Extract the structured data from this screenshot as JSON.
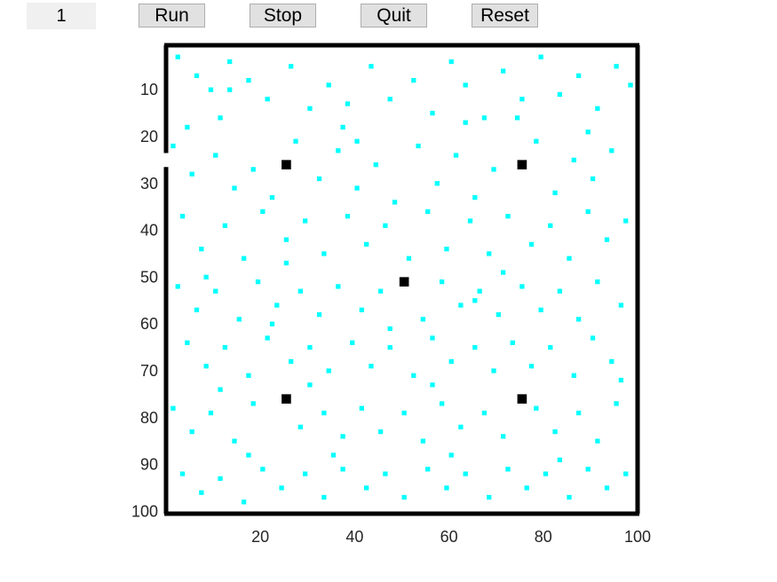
{
  "toolbar": {
    "counter": "1",
    "run_label": "Run",
    "stop_label": "Stop",
    "quit_label": "Quit",
    "reset_label": "Reset"
  },
  "colors": {
    "particle": "#00ffff",
    "source": "#000000",
    "frame": "#000000",
    "background": "#ffffff"
  },
  "chart_data": {
    "type": "heatmap",
    "title": "",
    "xlabel": "",
    "ylabel": "",
    "xlim": [
      0,
      100
    ],
    "ylim": [
      100,
      0
    ],
    "y_inverted": true,
    "grid": false,
    "x_ticks": [
      "20",
      "40",
      "60",
      "80",
      "100"
    ],
    "y_ticks": [
      "10",
      "20",
      "30",
      "40",
      "50",
      "60",
      "70",
      "80",
      "90",
      "100"
    ],
    "frame_opening_rows": [
      24,
      26
    ],
    "sources": [
      [
        25,
        25
      ],
      [
        75,
        25
      ],
      [
        50,
        50
      ],
      [
        25,
        75
      ],
      [
        75,
        75
      ]
    ],
    "particles": [
      [
        3,
        3
      ],
      [
        7,
        7
      ],
      [
        10,
        10
      ],
      [
        14,
        4
      ],
      [
        18,
        8
      ],
      [
        12,
        16
      ],
      [
        5,
        18
      ],
      [
        22,
        12
      ],
      [
        27,
        5
      ],
      [
        31,
        14
      ],
      [
        35,
        9
      ],
      [
        38,
        18
      ],
      [
        44,
        5
      ],
      [
        48,
        12
      ],
      [
        53,
        8
      ],
      [
        57,
        15
      ],
      [
        61,
        4
      ],
      [
        64,
        9
      ],
      [
        68,
        16
      ],
      [
        72,
        6
      ],
      [
        76,
        12
      ],
      [
        80,
        3
      ],
      [
        84,
        11
      ],
      [
        88,
        7
      ],
      [
        92,
        14
      ],
      [
        96,
        5
      ],
      [
        99,
        9
      ],
      [
        2,
        22
      ],
      [
        6,
        28
      ],
      [
        11,
        24
      ],
      [
        15,
        31
      ],
      [
        19,
        27
      ],
      [
        23,
        33
      ],
      [
        28,
        21
      ],
      [
        33,
        29
      ],
      [
        37,
        23
      ],
      [
        41,
        31
      ],
      [
        45,
        26
      ],
      [
        49,
        34
      ],
      [
        54,
        22
      ],
      [
        58,
        30
      ],
      [
        62,
        24
      ],
      [
        66,
        33
      ],
      [
        70,
        27
      ],
      [
        79,
        21
      ],
      [
        83,
        32
      ],
      [
        87,
        25
      ],
      [
        91,
        29
      ],
      [
        95,
        23
      ],
      [
        4,
        37
      ],
      [
        8,
        44
      ],
      [
        13,
        39
      ],
      [
        17,
        46
      ],
      [
        21,
        36
      ],
      [
        26,
        42
      ],
      [
        30,
        38
      ],
      [
        34,
        45
      ],
      [
        39,
        37
      ],
      [
        43,
        43
      ],
      [
        47,
        39
      ],
      [
        52,
        46
      ],
      [
        56,
        36
      ],
      [
        60,
        44
      ],
      [
        65,
        38
      ],
      [
        69,
        45
      ],
      [
        73,
        37
      ],
      [
        78,
        43
      ],
      [
        82,
        39
      ],
      [
        86,
        46
      ],
      [
        90,
        36
      ],
      [
        94,
        42
      ],
      [
        98,
        38
      ],
      [
        3,
        52
      ],
      [
        7,
        57
      ],
      [
        11,
        53
      ],
      [
        16,
        59
      ],
      [
        20,
        51
      ],
      [
        24,
        56
      ],
      [
        29,
        53
      ],
      [
        33,
        58
      ],
      [
        37,
        52
      ],
      [
        42,
        57
      ],
      [
        46,
        53
      ],
      [
        55,
        59
      ],
      [
        59,
        51
      ],
      [
        63,
        56
      ],
      [
        67,
        53
      ],
      [
        71,
        58
      ],
      [
        76,
        52
      ],
      [
        80,
        57
      ],
      [
        84,
        53
      ],
      [
        88,
        59
      ],
      [
        92,
        51
      ],
      [
        97,
        56
      ],
      [
        5,
        64
      ],
      [
        9,
        69
      ],
      [
        13,
        65
      ],
      [
        18,
        71
      ],
      [
        22,
        63
      ],
      [
        27,
        68
      ],
      [
        31,
        65
      ],
      [
        35,
        70
      ],
      [
        40,
        64
      ],
      [
        44,
        69
      ],
      [
        48,
        65
      ],
      [
        53,
        71
      ],
      [
        57,
        63
      ],
      [
        61,
        68
      ],
      [
        66,
        65
      ],
      [
        70,
        70
      ],
      [
        74,
        64
      ],
      [
        78,
        69
      ],
      [
        82,
        65
      ],
      [
        87,
        71
      ],
      [
        91,
        63
      ],
      [
        95,
        68
      ],
      [
        2,
        78
      ],
      [
        6,
        83
      ],
      [
        10,
        79
      ],
      [
        15,
        85
      ],
      [
        19,
        77
      ],
      [
        29,
        82
      ],
      [
        34,
        79
      ],
      [
        38,
        84
      ],
      [
        42,
        78
      ],
      [
        46,
        83
      ],
      [
        51,
        79
      ],
      [
        55,
        85
      ],
      [
        59,
        77
      ],
      [
        63,
        82
      ],
      [
        68,
        79
      ],
      [
        72,
        84
      ],
      [
        79,
        78
      ],
      [
        83,
        83
      ],
      [
        88,
        79
      ],
      [
        92,
        85
      ],
      [
        96,
        77
      ],
      [
        4,
        92
      ],
      [
        8,
        96
      ],
      [
        12,
        93
      ],
      [
        17,
        98
      ],
      [
        21,
        91
      ],
      [
        25,
        95
      ],
      [
        30,
        92
      ],
      [
        34,
        97
      ],
      [
        38,
        91
      ],
      [
        43,
        95
      ],
      [
        47,
        92
      ],
      [
        51,
        97
      ],
      [
        56,
        91
      ],
      [
        60,
        95
      ],
      [
        64,
        92
      ],
      [
        69,
        97
      ],
      [
        73,
        91
      ],
      [
        77,
        95
      ],
      [
        81,
        92
      ],
      [
        86,
        97
      ],
      [
        90,
        91
      ],
      [
        94,
        95
      ],
      [
        98,
        92
      ],
      [
        14,
        10
      ],
      [
        39,
        13
      ],
      [
        64,
        17
      ],
      [
        90,
        19
      ],
      [
        26,
        47
      ],
      [
        72,
        49
      ],
      [
        48,
        61
      ],
      [
        12,
        74
      ],
      [
        61,
        88
      ],
      [
        36,
        88
      ],
      [
        84,
        89
      ],
      [
        23,
        60
      ],
      [
        57,
        73
      ],
      [
        97,
        72
      ],
      [
        9,
        50
      ],
      [
        66,
        55
      ],
      [
        41,
        21
      ],
      [
        18,
        88
      ],
      [
        75,
        16
      ],
      [
        31,
        73
      ]
    ]
  }
}
